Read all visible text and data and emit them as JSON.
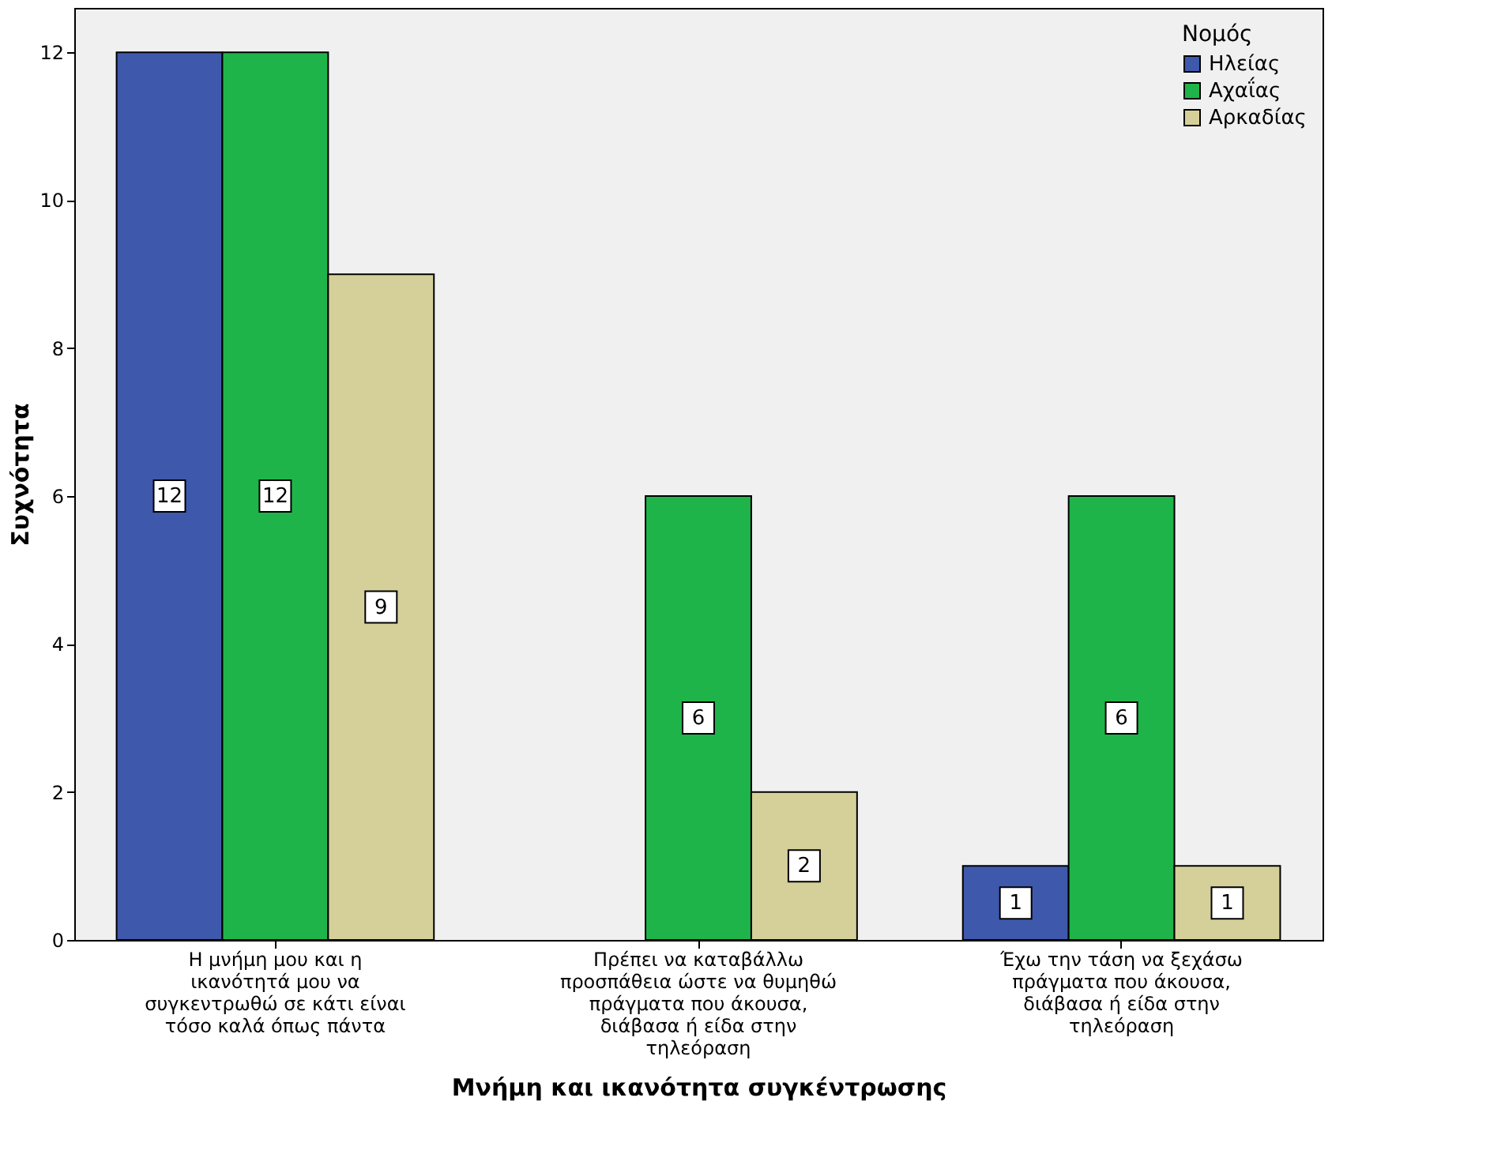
{
  "chart_data": {
    "type": "bar",
    "xlabel": "Μνήμη και ικανότητα συγκέντρωσης",
    "ylabel": "Συχνότητα",
    "legend_title": "Νομός",
    "categories": [
      "Η μνήμη μου και η ικανότητά μου να συγκεντρωθώ σε κάτι είναι τόσο καλά όπως πάντα",
      "Πρέπει να καταβάλλω προσπάθεια ώστε να θυμηθώ πράγματα που άκουσα, διάβασα ή είδα στην τηλεόραση",
      "Έχω την τάση να ξεχάσω πράγματα που άκουσα, διάβασα ή είδα στην τηλεόραση"
    ],
    "series": [
      {
        "name": "Ηλείας",
        "color": "#3e58ac",
        "values": [
          12,
          null,
          1
        ]
      },
      {
        "name": "Αχαΐας",
        "color": "#1fb44a",
        "values": [
          12,
          6,
          6
        ]
      },
      {
        "name": "Αρκαδίας",
        "color": "#d5d09a",
        "values": [
          9,
          2,
          1
        ]
      }
    ],
    "ylim": [
      0,
      12.6
    ],
    "yticks": [
      0,
      2,
      4,
      6,
      8,
      10,
      12
    ],
    "data_labels": true,
    "legend": "top right",
    "grid": false
  }
}
